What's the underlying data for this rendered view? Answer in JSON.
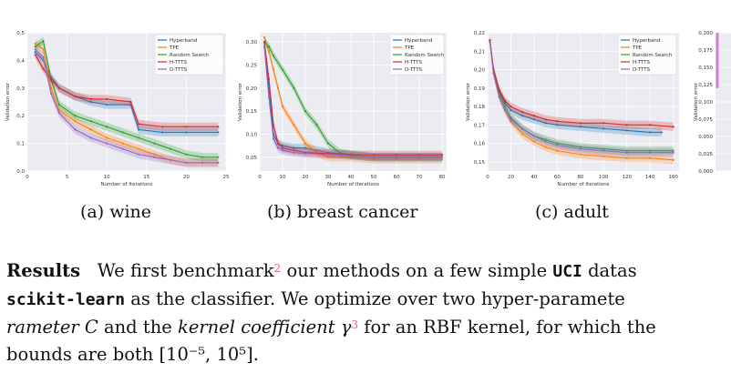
{
  "chart_data": [
    {
      "type": "line",
      "panel": "wine",
      "ylabel": "Validation error",
      "xlabel": "Number of Iterations",
      "xlim": [
        0,
        25
      ],
      "ylim": [
        0,
        0.5
      ],
      "xticks": [
        "0",
        "5",
        "10",
        "15",
        "20",
        "25"
      ],
      "yticks": [
        "0,0",
        "0,1",
        "0,2",
        "0,3",
        "0,4",
        "0,5"
      ],
      "legend": [
        "Hyperband",
        "TPE",
        "Random Search",
        "H-TTTS",
        "D-TTTS"
      ],
      "series": [
        {
          "name": "Hyperband",
          "x": [
            1,
            2,
            3,
            4,
            6,
            8,
            10,
            13,
            14,
            17,
            20,
            24
          ],
          "values": [
            0.43,
            0.4,
            0.34,
            0.3,
            0.27,
            0.25,
            0.24,
            0.24,
            0.15,
            0.14,
            0.14,
            0.14
          ]
        },
        {
          "name": "TPE",
          "x": [
            1,
            2,
            3,
            4,
            6,
            8,
            10,
            12,
            14,
            16,
            18,
            20,
            22,
            24
          ],
          "values": [
            0.46,
            0.44,
            0.3,
            0.22,
            0.18,
            0.15,
            0.12,
            0.1,
            0.08,
            0.06,
            0.04,
            0.03,
            0.03,
            0.03
          ]
        },
        {
          "name": "Random Search",
          "x": [
            1,
            2,
            3,
            4,
            6,
            8,
            10,
            12,
            14,
            16,
            18,
            20,
            22,
            24
          ],
          "values": [
            0.45,
            0.47,
            0.33,
            0.24,
            0.2,
            0.18,
            0.16,
            0.14,
            0.12,
            0.1,
            0.08,
            0.06,
            0.05,
            0.05
          ]
        },
        {
          "name": "H-TTTS",
          "x": [
            1,
            2,
            3,
            4,
            6,
            8,
            10,
            13,
            14,
            17,
            20,
            24
          ],
          "values": [
            0.42,
            0.37,
            0.33,
            0.3,
            0.27,
            0.26,
            0.26,
            0.25,
            0.17,
            0.16,
            0.16,
            0.16
          ]
        },
        {
          "name": "D-TTTS",
          "x": [
            1,
            2,
            3,
            4,
            6,
            8,
            10,
            12,
            14,
            16,
            18,
            20,
            22,
            24
          ],
          "values": [
            0.44,
            0.41,
            0.28,
            0.21,
            0.15,
            0.12,
            0.1,
            0.08,
            0.06,
            0.05,
            0.04,
            0.03,
            0.03,
            0.03
          ]
        }
      ]
    },
    {
      "type": "line",
      "panel": "breast cancer",
      "ylabel": "Validation error",
      "xlabel": "Number of Iterations",
      "xlim": [
        0,
        82
      ],
      "ylim": [
        0.02,
        0.32
      ],
      "xticks": [
        "0",
        "10",
        "20",
        "30",
        "40",
        "50",
        "60",
        "70",
        "80"
      ],
      "yticks": [
        "0,05",
        "0,10",
        "0,15",
        "0,20",
        "0,25",
        "0,30"
      ],
      "legend": [
        "Hyperband",
        "TPE",
        "Random Search",
        "H-TTTS",
        "D-TTTS"
      ],
      "series": [
        {
          "name": "Hyperband",
          "x": [
            2,
            4,
            6,
            8,
            10,
            15,
            20,
            30,
            40,
            50,
            60,
            70,
            80
          ],
          "values": [
            0.3,
            0.2,
            0.1,
            0.08,
            0.075,
            0.07,
            0.07,
            0.06,
            0.055,
            0.05,
            0.05,
            0.05,
            0.05
          ]
        },
        {
          "name": "TPE",
          "x": [
            2,
            4,
            6,
            8,
            10,
            15,
            20,
            25,
            30,
            40,
            50,
            60,
            70,
            80
          ],
          "values": [
            0.31,
            0.28,
            0.24,
            0.2,
            0.16,
            0.12,
            0.08,
            0.06,
            0.05,
            0.05,
            0.045,
            0.045,
            0.045,
            0.045
          ]
        },
        {
          "name": "Random Search",
          "x": [
            2,
            4,
            6,
            10,
            15,
            20,
            25,
            30,
            35,
            40,
            50,
            60,
            70,
            80
          ],
          "values": [
            0.3,
            0.29,
            0.27,
            0.24,
            0.2,
            0.15,
            0.12,
            0.08,
            0.06,
            0.055,
            0.05,
            0.05,
            0.05,
            0.05
          ]
        },
        {
          "name": "H-TTTS",
          "x": [
            2,
            4,
            6,
            8,
            10,
            15,
            20,
            30,
            40,
            50,
            60,
            70,
            80
          ],
          "values": [
            0.3,
            0.22,
            0.12,
            0.08,
            0.07,
            0.065,
            0.06,
            0.058,
            0.056,
            0.055,
            0.055,
            0.055,
            0.055
          ]
        },
        {
          "name": "D-TTTS",
          "x": [
            2,
            4,
            6,
            8,
            10,
            15,
            20,
            30,
            40,
            50,
            60,
            70,
            80
          ],
          "values": [
            0.29,
            0.18,
            0.09,
            0.07,
            0.065,
            0.06,
            0.058,
            0.056,
            0.053,
            0.05,
            0.05,
            0.05,
            0.05
          ]
        }
      ]
    },
    {
      "type": "line",
      "panel": "adult",
      "ylabel": "Validation error",
      "xlabel": "Number of Iterations",
      "xlim": [
        0,
        165
      ],
      "ylim": [
        0.145,
        0.22
      ],
      "xticks": [
        "0",
        "20",
        "40",
        "60",
        "80",
        "100",
        "120",
        "140",
        "160"
      ],
      "yticks": [
        "0,15",
        "0,16",
        "0,17",
        "0,18",
        "0,19",
        "0,20",
        "0,21",
        "0,22"
      ],
      "legend": [
        "Hyperband",
        "TPE",
        "Random Search",
        "H-TTTS",
        "D-TTTS"
      ],
      "series": [
        {
          "name": "Hyperband",
          "x": [
            2,
            5,
            10,
            15,
            20,
            30,
            40,
            50,
            60,
            80,
            100,
            120,
            140,
            150
          ],
          "values": [
            0.215,
            0.2,
            0.188,
            0.182,
            0.178,
            0.175,
            0.173,
            0.171,
            0.17,
            0.169,
            0.168,
            0.167,
            0.166,
            0.166
          ]
        },
        {
          "name": "TPE",
          "x": [
            2,
            5,
            10,
            15,
            20,
            30,
            40,
            50,
            60,
            80,
            100,
            120,
            140,
            160
          ],
          "values": [
            0.216,
            0.2,
            0.186,
            0.178,
            0.172,
            0.165,
            0.161,
            0.158,
            0.156,
            0.154,
            0.153,
            0.152,
            0.152,
            0.151
          ]
        },
        {
          "name": "Random Search",
          "x": [
            2,
            5,
            10,
            15,
            20,
            30,
            40,
            50,
            60,
            80,
            100,
            120,
            140,
            160
          ],
          "values": [
            0.215,
            0.2,
            0.187,
            0.18,
            0.174,
            0.168,
            0.164,
            0.162,
            0.16,
            0.158,
            0.157,
            0.156,
            0.156,
            0.156
          ]
        },
        {
          "name": "H-TTTS",
          "x": [
            2,
            5,
            10,
            15,
            20,
            30,
            40,
            50,
            60,
            80,
            100,
            120,
            140,
            160
          ],
          "values": [
            0.216,
            0.2,
            0.189,
            0.183,
            0.18,
            0.177,
            0.175,
            0.173,
            0.172,
            0.171,
            0.171,
            0.17,
            0.17,
            0.169
          ]
        },
        {
          "name": "D-TTTS",
          "x": [
            2,
            5,
            10,
            15,
            20,
            30,
            40,
            50,
            60,
            80,
            100,
            120,
            140,
            160
          ],
          "values": [
            0.215,
            0.198,
            0.185,
            0.178,
            0.173,
            0.168,
            0.164,
            0.161,
            0.159,
            0.157,
            0.156,
            0.155,
            0.155,
            0.155
          ]
        }
      ]
    },
    {
      "type": "line",
      "panel": "partial",
      "ylabel": "Validation error",
      "ylim": [
        0,
        0.2
      ],
      "yticks": [
        "0,000",
        "0,025",
        "0,050",
        "0,075",
        "0,100",
        "0,125",
        "0,150",
        "0,175",
        "0,200"
      ],
      "series": [
        {
          "name": "partial",
          "x": [
            0
          ],
          "values": [
            0.19
          ]
        }
      ]
    }
  ],
  "captions": [
    "(a) wine",
    "(b) breast cancer",
    "(c) adult"
  ],
  "paragraph": {
    "heading": "Results",
    "line1_a": "We first benchmark",
    "fn1": "2",
    "line1_b": " our methods on a few simple ",
    "uci": "UCI",
    "line1_c": " datas",
    "sklearn": "scikit-learn",
    "line2_b": " as the classifier.  We optimize over two hyper-paramete",
    "line3_a": "rameter C",
    "line3_b": " and the ",
    "kernel": "kernel coefficient",
    "gamma": " γ",
    "fn2": "3",
    "line3_c": " for an RBF kernel, for which the",
    "line4": "bounds are both [10⁻⁵, 10⁵]."
  },
  "colors": {
    "Hyperband": "#1f77b4",
    "TPE": "#ff7f0e",
    "Random Search": "#2ca02c",
    "H-TTTS": "#d62728",
    "D-TTTS": "#9467bd",
    "grid_bg": "#ebebf2"
  }
}
